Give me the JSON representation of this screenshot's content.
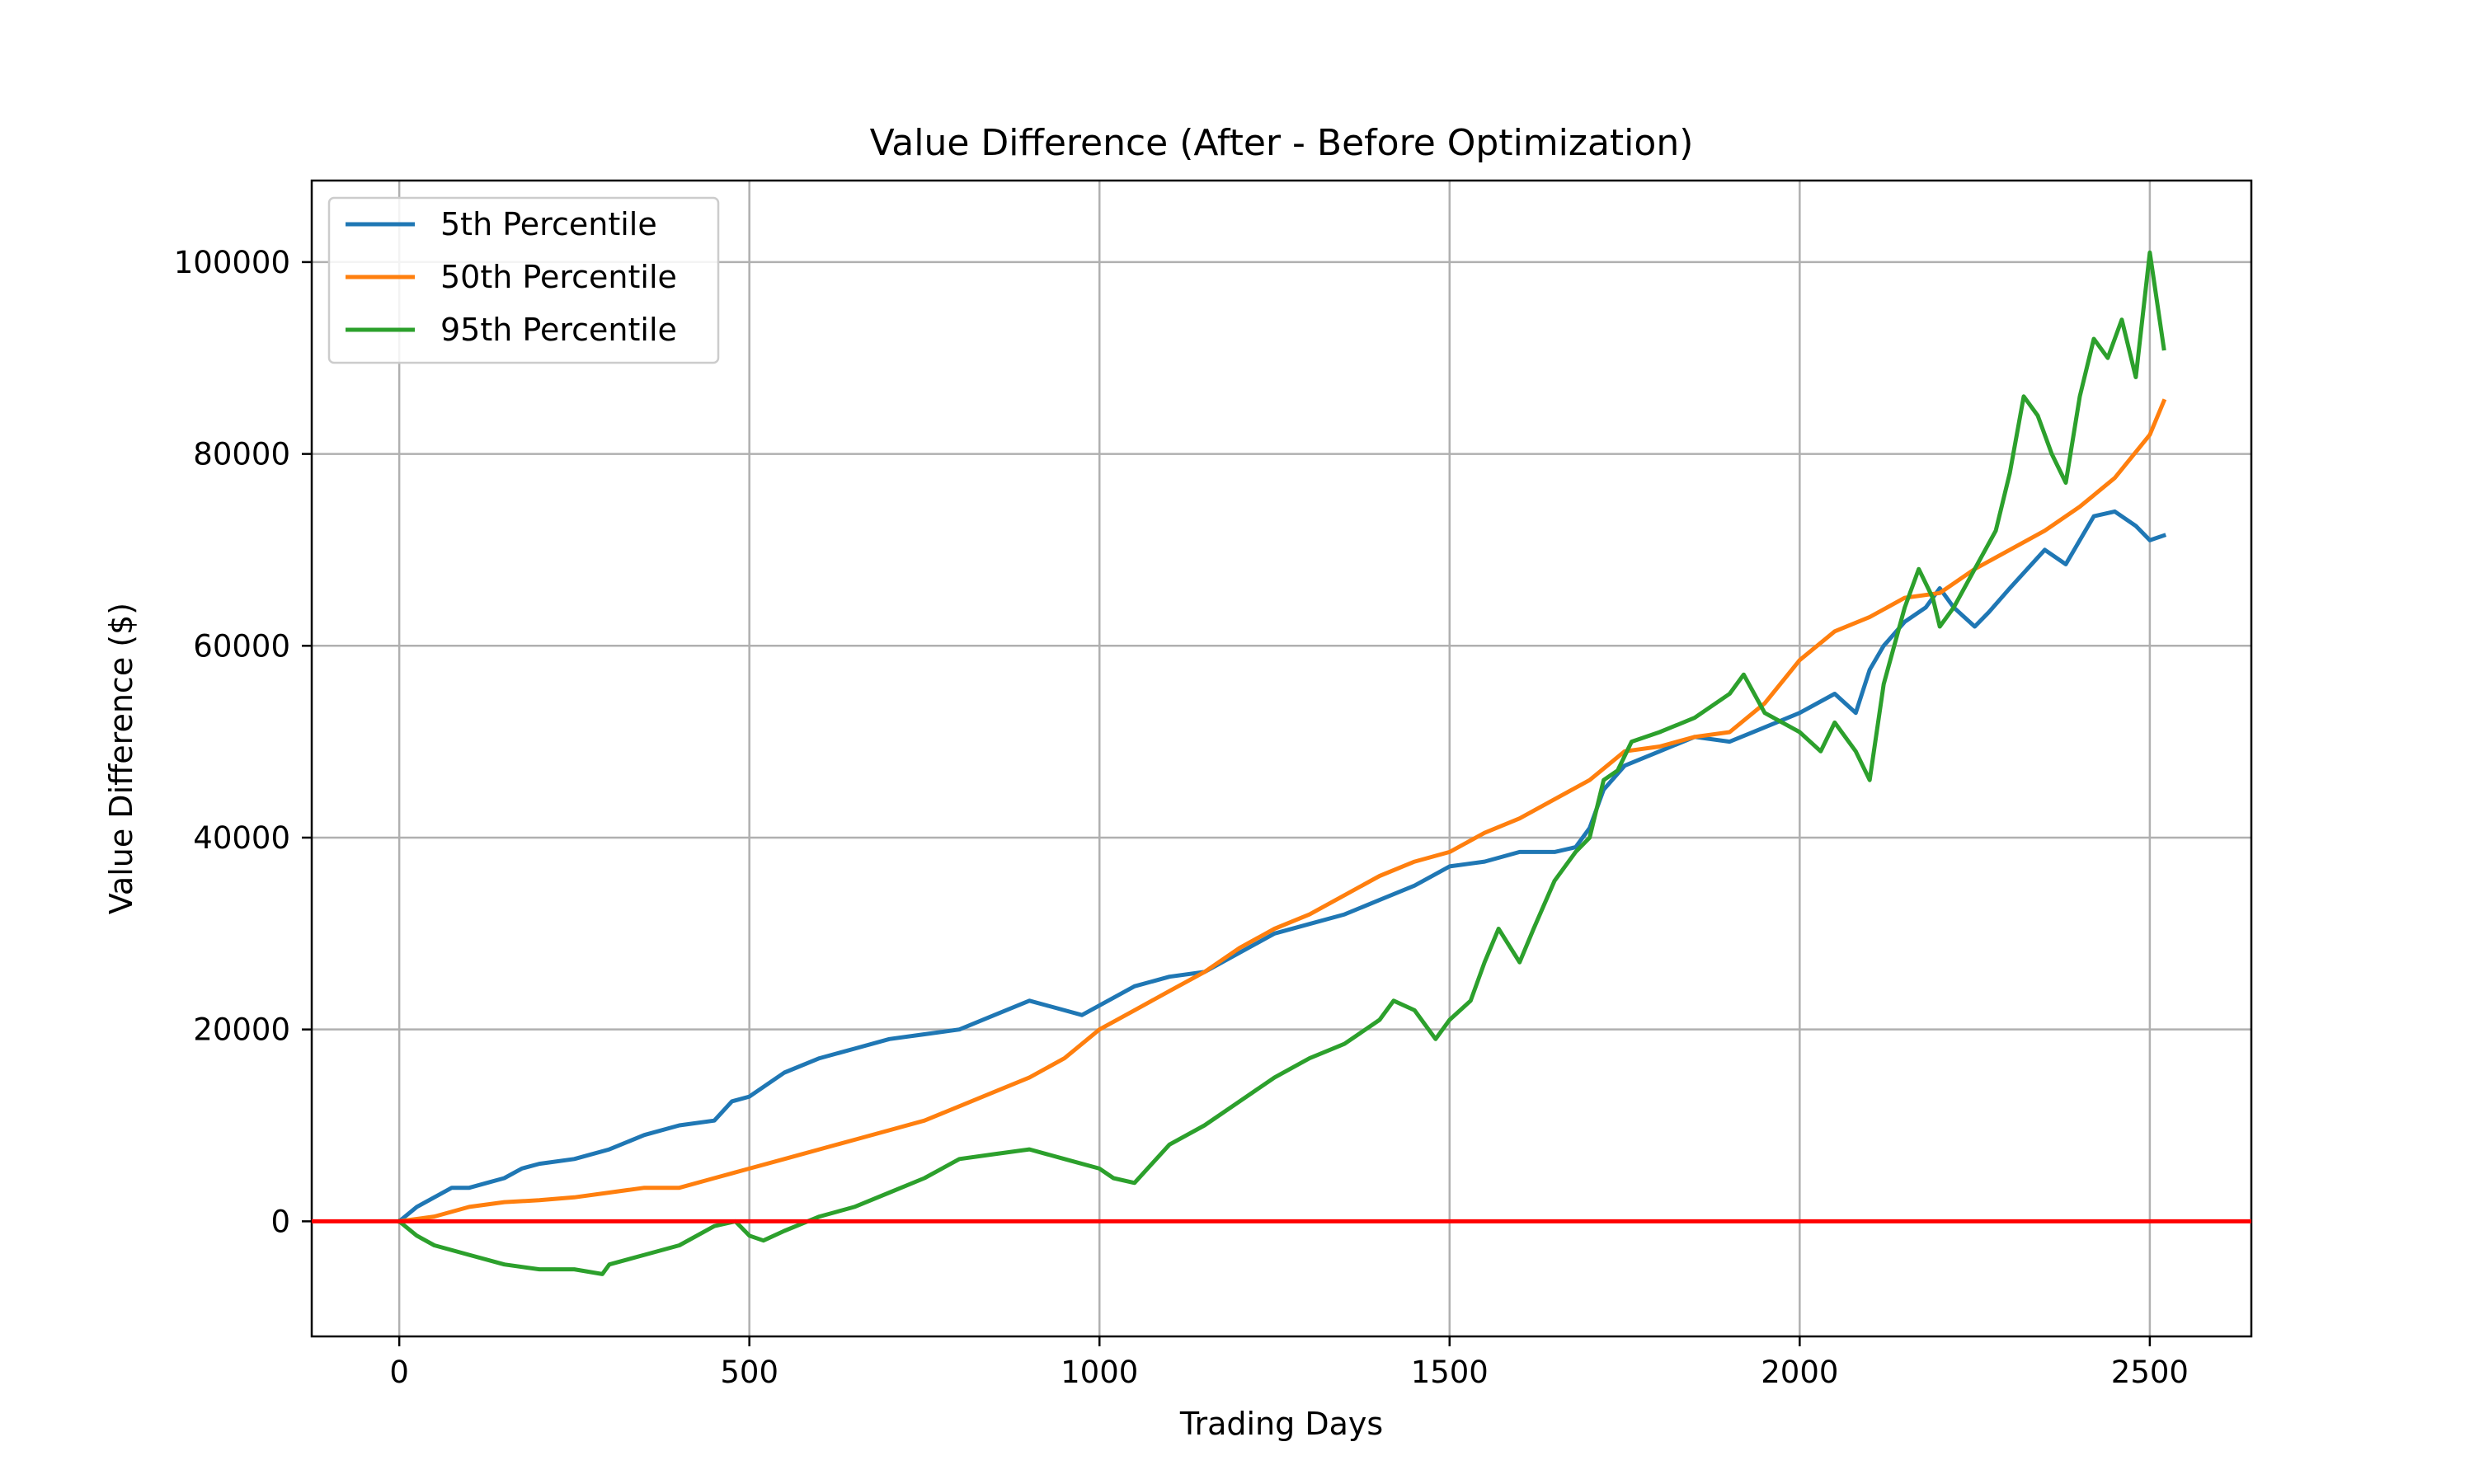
{
  "chart_data": {
    "type": "line",
    "title": "Value Difference (After - Before Optimization)",
    "xlabel": "Trading Days",
    "ylabel": "Value Difference ($)",
    "xlim": [
      -125,
      2645
    ],
    "ylim": [
      -12000,
      108500
    ],
    "xticks": [
      0,
      500,
      1000,
      1500,
      2000,
      2500
    ],
    "yticks": [
      0,
      20000,
      40000,
      60000,
      80000,
      100000
    ],
    "grid": true,
    "legend_position": "top-left",
    "reference_line": {
      "y": 0,
      "color": "#ff0000"
    },
    "series": [
      {
        "name": "5th Percentile",
        "color": "#1f77b4",
        "x": [
          0,
          25,
          50,
          75,
          100,
          125,
          150,
          175,
          200,
          250,
          300,
          350,
          400,
          450,
          475,
          500,
          550,
          600,
          650,
          700,
          750,
          800,
          850,
          900,
          925,
          950,
          975,
          1000,
          1050,
          1100,
          1150,
          1200,
          1250,
          1300,
          1350,
          1400,
          1450,
          1500,
          1550,
          1600,
          1650,
          1680,
          1700,
          1720,
          1750,
          1800,
          1850,
          1900,
          1950,
          2000,
          2050,
          2080,
          2100,
          2120,
          2150,
          2180,
          2200,
          2220,
          2250,
          2270,
          2300,
          2350,
          2380,
          2400,
          2420,
          2450,
          2480,
          2500,
          2520
        ],
        "y": [
          0,
          1500,
          2500,
          3500,
          3500,
          4000,
          4500,
          5500,
          6000,
          6500,
          7500,
          9000,
          10000,
          10500,
          12500,
          13000,
          15500,
          17000,
          18000,
          19000,
          19500,
          20000,
          21500,
          23000,
          22500,
          22000,
          21500,
          22500,
          24500,
          25500,
          26000,
          28000,
          30000,
          31000,
          32000,
          33500,
          35000,
          37000,
          37500,
          38500,
          38500,
          39000,
          41000,
          45000,
          47500,
          49000,
          50500,
          50000,
          51500,
          53000,
          55000,
          53000,
          57500,
          60000,
          62500,
          64000,
          66000,
          64000,
          62000,
          63500,
          66000,
          70000,
          68500,
          71000,
          73500,
          74000,
          72500,
          71000,
          71500
        ]
      },
      {
        "name": "50th Percentile",
        "color": "#ff7f0e",
        "x": [
          0,
          50,
          100,
          150,
          200,
          250,
          300,
          350,
          400,
          450,
          500,
          550,
          600,
          650,
          700,
          750,
          800,
          850,
          900,
          950,
          1000,
          1050,
          1100,
          1150,
          1200,
          1250,
          1300,
          1350,
          1400,
          1450,
          1500,
          1550,
          1600,
          1650,
          1700,
          1750,
          1800,
          1850,
          1900,
          1950,
          2000,
          2050,
          2100,
          2150,
          2200,
          2250,
          2300,
          2350,
          2400,
          2450,
          2500,
          2520
        ],
        "y": [
          0,
          500,
          1500,
          2000,
          2200,
          2500,
          3000,
          3500,
          3500,
          4500,
          5500,
          6500,
          7500,
          8500,
          9500,
          10500,
          12000,
          13500,
          15000,
          17000,
          20000,
          22000,
          24000,
          26000,
          28500,
          30500,
          32000,
          34000,
          36000,
          37500,
          38500,
          40500,
          42000,
          44000,
          46000,
          49000,
          49500,
          50500,
          51000,
          54000,
          58500,
          61500,
          63000,
          65000,
          65500,
          68000,
          70000,
          72000,
          74500,
          77500,
          82000,
          85500
        ]
      },
      {
        "name": "95th Percentile",
        "color": "#2ca02c",
        "x": [
          0,
          25,
          50,
          100,
          150,
          200,
          250,
          290,
          300,
          350,
          400,
          450,
          480,
          500,
          520,
          550,
          600,
          650,
          700,
          750,
          800,
          850,
          900,
          950,
          1000,
          1020,
          1050,
          1100,
          1150,
          1200,
          1250,
          1300,
          1350,
          1400,
          1420,
          1450,
          1480,
          1500,
          1530,
          1550,
          1570,
          1600,
          1620,
          1650,
          1680,
          1700,
          1720,
          1740,
          1760,
          1800,
          1850,
          1900,
          1920,
          1950,
          2000,
          2030,
          2050,
          2080,
          2100,
          2120,
          2150,
          2170,
          2190,
          2200,
          2220,
          2250,
          2280,
          2300,
          2320,
          2340,
          2360,
          2380,
          2400,
          2420,
          2440,
          2460,
          2480,
          2500,
          2510,
          2520
        ],
        "y": [
          0,
          -1500,
          -2500,
          -3500,
          -4500,
          -5000,
          -5000,
          -5500,
          -4500,
          -3500,
          -2500,
          -500,
          0,
          -1500,
          -2000,
          -1000,
          500,
          1500,
          3000,
          4500,
          6500,
          7000,
          7500,
          6500,
          5500,
          4500,
          4000,
          8000,
          10000,
          12500,
          15000,
          17000,
          18500,
          21000,
          23000,
          22000,
          19000,
          21000,
          23000,
          27000,
          30500,
          27000,
          30500,
          35500,
          38500,
          40000,
          46000,
          47000,
          50000,
          51000,
          52500,
          55000,
          57000,
          53000,
          51000,
          49000,
          52000,
          49000,
          46000,
          56000,
          64000,
          68000,
          65000,
          62000,
          64000,
          68000,
          72000,
          78000,
          86000,
          84000,
          80000,
          77000,
          86000,
          92000,
          90000,
          94000,
          88000,
          101000,
          96000,
          91000
        ]
      }
    ]
  }
}
